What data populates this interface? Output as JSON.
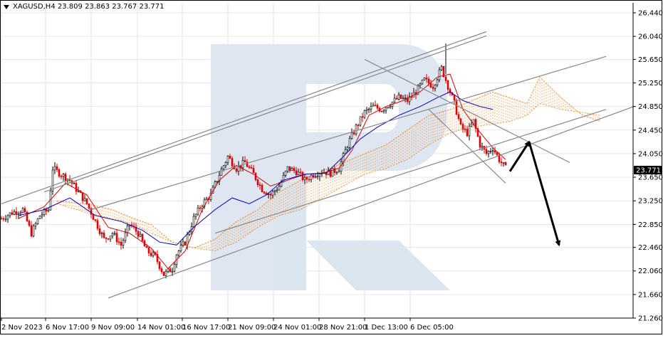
{
  "header": {
    "symbol": "XAGUSD,H4",
    "open": "23.809",
    "high": "23.863",
    "low": "23.767",
    "close": "23.771"
  },
  "colors": {
    "bull": "#000000",
    "bear": "#dd0000",
    "tenkan": "#dd0000",
    "kijun": "#0000cc",
    "cloud": "#f08020",
    "channel": "#888888",
    "arrow": "#000000",
    "price_tag_bg": "#000000",
    "grid": "#e6e6e6",
    "watermark": "#d7e2ee"
  },
  "chart_data": {
    "type": "candlestick",
    "title": "XAGUSD,H4",
    "indicator": "Ichimoku Kinko Hyo",
    "ylim": [
      21.26,
      26.44
    ],
    "yticks": [
      "26.440",
      "26.040",
      "25.650",
      "25.250",
      "24.850",
      "24.450",
      "24.050",
      "23.650",
      "23.250",
      "22.850",
      "22.460",
      "22.060",
      "21.660",
      "21.260"
    ],
    "xticks": [
      "2 Nov 2023",
      "6 Nov 17:00",
      "9 Nov 09:00",
      "14 Nov 01:00",
      "16 Nov 17:00",
      "21 Nov 09:00",
      "24 Nov 01:00",
      "28 Nov 21:00",
      "1 Dec 13:00",
      "6 Dec 05:00"
    ],
    "current_price": "23.771",
    "close_path": [
      [
        0,
        22.95
      ],
      [
        5,
        23.05
      ],
      [
        10,
        23.1
      ],
      [
        14,
        22.7
      ],
      [
        18,
        23.0
      ],
      [
        22,
        23.1
      ],
      [
        24,
        23.8
      ],
      [
        28,
        23.7
      ],
      [
        32,
        23.6
      ],
      [
        36,
        23.4
      ],
      [
        40,
        23.2
      ],
      [
        44,
        22.9
      ],
      [
        48,
        22.6
      ],
      [
        52,
        22.7
      ],
      [
        56,
        22.5
      ],
      [
        60,
        22.85
      ],
      [
        64,
        22.7
      ],
      [
        68,
        22.4
      ],
      [
        72,
        22.3
      ],
      [
        76,
        22.0
      ],
      [
        80,
        22.1
      ],
      [
        82,
        22.35
      ],
      [
        86,
        22.55
      ],
      [
        90,
        22.95
      ],
      [
        94,
        23.2
      ],
      [
        98,
        23.35
      ],
      [
        102,
        23.7
      ],
      [
        106,
        24.0
      ],
      [
        110,
        23.8
      ],
      [
        114,
        23.9
      ],
      [
        118,
        23.7
      ],
      [
        122,
        23.45
      ],
      [
        126,
        23.35
      ],
      [
        130,
        23.5
      ],
      [
        134,
        23.8
      ],
      [
        138,
        23.75
      ],
      [
        142,
        23.6
      ],
      [
        146,
        23.7
      ],
      [
        150,
        23.75
      ],
      [
        154,
        23.72
      ],
      [
        158,
        23.8
      ],
      [
        162,
        24.2
      ],
      [
        166,
        24.5
      ],
      [
        170,
        24.75
      ],
      [
        174,
        24.85
      ],
      [
        178,
        24.8
      ],
      [
        182,
        24.9
      ],
      [
        186,
        25.0
      ],
      [
        190,
        24.95
      ],
      [
        194,
        25.1
      ],
      [
        198,
        25.3
      ],
      [
        202,
        25.2
      ],
      [
        206,
        25.5
      ],
      [
        209,
        25.2
      ],
      [
        212,
        24.9
      ],
      [
        215,
        24.5
      ],
      [
        218,
        24.4
      ],
      [
        221,
        24.6
      ],
      [
        224,
        24.2
      ],
      [
        227,
        24.05
      ],
      [
        230,
        24.15
      ],
      [
        233,
        23.95
      ],
      [
        236,
        23.8
      ]
    ],
    "tenkan_sen": [
      [
        8,
        22.95
      ],
      [
        20,
        23.15
      ],
      [
        30,
        23.55
      ],
      [
        40,
        23.35
      ],
      [
        50,
        22.8
      ],
      [
        60,
        22.7
      ],
      [
        70,
        22.45
      ],
      [
        78,
        22.1
      ],
      [
        86,
        22.4
      ],
      [
        94,
        23.1
      ],
      [
        102,
        23.6
      ],
      [
        110,
        23.85
      ],
      [
        118,
        23.7
      ],
      [
        126,
        23.5
      ],
      [
        134,
        23.6
      ],
      [
        142,
        23.7
      ],
      [
        150,
        23.72
      ],
      [
        158,
        23.8
      ],
      [
        164,
        24.1
      ],
      [
        172,
        24.7
      ],
      [
        180,
        24.85
      ],
      [
        188,
        24.95
      ],
      [
        196,
        25.1
      ],
      [
        204,
        25.35
      ],
      [
        210,
        25.4
      ],
      [
        216,
        24.8
      ],
      [
        222,
        24.5
      ],
      [
        230,
        24.15
      ],
      [
        236,
        23.95
      ]
    ],
    "kijun_sen": [
      [
        8,
        23.0
      ],
      [
        20,
        23.1
      ],
      [
        32,
        23.3
      ],
      [
        44,
        23.0
      ],
      [
        56,
        22.9
      ],
      [
        66,
        22.75
      ],
      [
        74,
        22.55
      ],
      [
        82,
        22.5
      ],
      [
        90,
        22.8
      ],
      [
        100,
        23.1
      ],
      [
        108,
        23.3
      ],
      [
        116,
        23.2
      ],
      [
        124,
        23.35
      ],
      [
        132,
        23.6
      ],
      [
        142,
        23.7
      ],
      [
        152,
        23.72
      ],
      [
        160,
        24.0
      ],
      [
        168,
        24.3
      ],
      [
        176,
        24.5
      ],
      [
        186,
        24.7
      ],
      [
        196,
        24.85
      ],
      [
        204,
        25.0
      ],
      [
        210,
        25.1
      ],
      [
        216,
        24.95
      ],
      [
        224,
        24.85
      ],
      [
        230,
        24.8
      ]
    ],
    "senkou_span_a": [
      [
        26,
        23.25
      ],
      [
        40,
        23.2
      ],
      [
        52,
        23.1
      ],
      [
        62,
        22.95
      ],
      [
        70,
        22.85
      ],
      [
        80,
        22.55
      ],
      [
        90,
        22.45
      ],
      [
        100,
        22.6
      ],
      [
        110,
        22.9
      ],
      [
        120,
        23.1
      ],
      [
        130,
        23.4
      ],
      [
        140,
        23.6
      ],
      [
        150,
        23.75
      ],
      [
        160,
        23.9
      ],
      [
        170,
        24.05
      ],
      [
        180,
        24.2
      ],
      [
        190,
        24.45
      ],
      [
        200,
        24.7
      ],
      [
        210,
        24.8
      ],
      [
        220,
        24.95
      ],
      [
        230,
        25.1
      ],
      [
        238,
        25.0
      ],
      [
        246,
        24.9
      ],
      [
        252,
        25.35
      ],
      [
        262,
        25.0
      ],
      [
        272,
        24.7
      ],
      [
        280,
        24.6
      ]
    ],
    "senkou_span_b": [
      [
        26,
        23.2
      ],
      [
        40,
        23.05
      ],
      [
        52,
        22.95
      ],
      [
        62,
        22.85
      ],
      [
        70,
        22.7
      ],
      [
        80,
        22.55
      ],
      [
        90,
        22.45
      ],
      [
        100,
        22.4
      ],
      [
        110,
        22.55
      ],
      [
        120,
        22.8
      ],
      [
        130,
        23.0
      ],
      [
        140,
        23.1
      ],
      [
        150,
        23.3
      ],
      [
        160,
        23.5
      ],
      [
        170,
        23.7
      ],
      [
        180,
        23.8
      ],
      [
        190,
        23.95
      ],
      [
        200,
        24.2
      ],
      [
        210,
        24.4
      ],
      [
        220,
        24.5
      ],
      [
        230,
        24.55
      ],
      [
        238,
        24.6
      ],
      [
        246,
        24.7
      ],
      [
        252,
        24.9
      ],
      [
        262,
        24.8
      ],
      [
        272,
        24.75
      ],
      [
        280,
        24.7
      ]
    ],
    "trendlines": [
      {
        "name": "outer-upper",
        "p1": [
          0,
          23.2
        ],
        "p2": [
          227,
          26.12
        ]
      },
      {
        "name": "outer-upper-2",
        "p1": [
          20,
          23.4
        ],
        "p2": [
          227,
          26.05
        ]
      },
      {
        "name": "mid-upper",
        "p1": [
          42,
          23.1
        ],
        "p2": [
          283,
          25.7
        ]
      },
      {
        "name": "mid-lower",
        "p1": [
          100,
          22.7
        ],
        "p2": [
          283,
          24.8
        ]
      },
      {
        "name": "lower",
        "p1": [
          50,
          21.6
        ],
        "p2": [
          296,
          24.85
        ]
      },
      {
        "name": "down-upper",
        "p1": [
          170,
          25.65
        ],
        "p2": [
          266,
          23.9
        ]
      },
      {
        "name": "down-lower",
        "p1": [
          200,
          24.8
        ],
        "p2": [
          236,
          23.55
        ]
      }
    ],
    "forecast_arrows": [
      {
        "from": [
          238,
          23.75
        ],
        "to": [
          247,
          24.25
        ]
      },
      {
        "from": [
          247,
          24.25
        ],
        "to": [
          261,
          22.5
        ]
      }
    ]
  }
}
